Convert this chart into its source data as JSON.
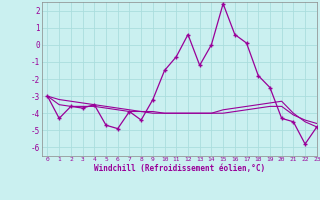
{
  "xlabel": "Windchill (Refroidissement éolien,°C)",
  "xlim": [
    -0.5,
    23
  ],
  "ylim": [
    -6.5,
    2.5
  ],
  "yticks": [
    2,
    1,
    0,
    -1,
    -2,
    -3,
    -4,
    -5,
    -6
  ],
  "xticks": [
    0,
    1,
    2,
    3,
    4,
    5,
    6,
    7,
    8,
    9,
    10,
    11,
    12,
    13,
    14,
    15,
    16,
    17,
    18,
    19,
    20,
    21,
    22,
    23
  ],
  "bg_color": "#caf0f0",
  "line_color": "#990099",
  "grid_color": "#aadddd",
  "hours": [
    0,
    1,
    2,
    3,
    4,
    5,
    6,
    7,
    8,
    9,
    10,
    11,
    12,
    13,
    14,
    15,
    16,
    17,
    18,
    19,
    20,
    21,
    22,
    23
  ],
  "windchill": [
    -3.0,
    -4.3,
    -3.6,
    -3.7,
    -3.5,
    -4.7,
    -4.9,
    -3.9,
    -4.4,
    -3.2,
    -1.5,
    -0.7,
    0.6,
    -1.2,
    0.0,
    2.4,
    0.6,
    0.1,
    -1.8,
    -2.5,
    -4.3,
    -4.5,
    -5.8,
    -4.8
  ],
  "line2": [
    -3.0,
    -3.5,
    -3.6,
    -3.6,
    -3.6,
    -3.7,
    -3.8,
    -3.9,
    -3.9,
    -4.0,
    -4.0,
    -4.0,
    -4.0,
    -4.0,
    -4.0,
    -3.8,
    -3.7,
    -3.6,
    -3.5,
    -3.4,
    -3.3,
    -4.0,
    -4.5,
    -4.8
  ],
  "line3": [
    -3.0,
    -3.2,
    -3.3,
    -3.4,
    -3.5,
    -3.6,
    -3.7,
    -3.8,
    -3.9,
    -3.9,
    -4.0,
    -4.0,
    -4.0,
    -4.0,
    -4.0,
    -4.0,
    -3.9,
    -3.8,
    -3.7,
    -3.6,
    -3.6,
    -4.1,
    -4.4,
    -4.6
  ]
}
